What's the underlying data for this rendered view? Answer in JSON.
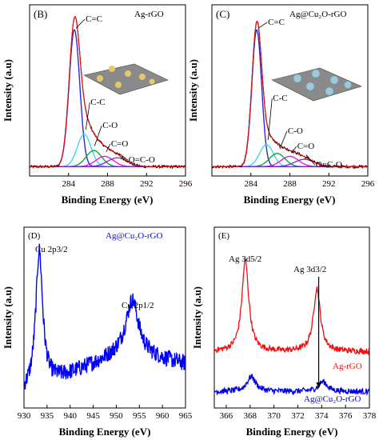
{
  "chart_data": [
    {
      "type": "line",
      "panel_label": "(B)",
      "sample_label": "Ag-rGO",
      "xlabel": "Binding Energy (eV)",
      "ylabel": "Intensity (a.u)",
      "xlim": [
        280,
        296
      ],
      "xticks": [
        284,
        288,
        292,
        296
      ],
      "grid": false,
      "annotations": [
        {
          "text": "C=C",
          "x": 284.6
        },
        {
          "text": "C-C",
          "x": 285.6
        },
        {
          "text": "C-O",
          "x": 286.5
        },
        {
          "text": "C=O",
          "x": 287.7
        },
        {
          "text": "O=C-O",
          "x": 289.0
        }
      ],
      "peaks": [
        {
          "name": "C=C",
          "center": 284.6,
          "height": 0.93,
          "width": 0.55,
          "color": "#2a2ad6"
        },
        {
          "name": "C-C",
          "center": 285.6,
          "height": 0.22,
          "width": 0.7,
          "color": "#44d4ee"
        },
        {
          "name": "C-O",
          "center": 286.6,
          "height": 0.11,
          "width": 0.8,
          "color": "#10a43c"
        },
        {
          "name": "C=O",
          "center": 287.7,
          "height": 0.07,
          "width": 0.9,
          "color": "#dd22dd"
        },
        {
          "name": "O=C-O",
          "center": 289.0,
          "height": 0.06,
          "width": 1.0,
          "color": "#7a3ad0"
        }
      ],
      "baseline": 0.02
    },
    {
      "type": "line",
      "panel_label": "(C)",
      "sample_label": "Ag@Cu₂O-rGO",
      "xlabel": "Binding Energy (eV)",
      "ylabel": "Intensity (a.u)",
      "xlim": [
        280,
        296
      ],
      "xticks": [
        284,
        288,
        292,
        296
      ],
      "grid": false,
      "annotations": [
        {
          "text": "C=C",
          "x": 284.6
        },
        {
          "text": "C-C",
          "x": 285.6
        },
        {
          "text": "C-O",
          "x": 286.8
        },
        {
          "text": "C=O",
          "x": 288.1
        },
        {
          "text": "O=C-O",
          "x": 289.5
        }
      ],
      "peaks": [
        {
          "name": "C=C",
          "center": 284.6,
          "height": 0.93,
          "width": 0.5,
          "color": "#2a2ad6"
        },
        {
          "name": "C-C",
          "center": 285.6,
          "height": 0.15,
          "width": 0.7,
          "color": "#44d4ee"
        },
        {
          "name": "C-O",
          "center": 286.7,
          "height": 0.09,
          "width": 0.8,
          "color": "#10a43c"
        },
        {
          "name": "C=O",
          "center": 288.0,
          "height": 0.07,
          "width": 0.9,
          "color": "#dd22dd"
        },
        {
          "name": "O=C-O",
          "center": 289.5,
          "height": 0.05,
          "width": 1.0,
          "color": "#7a3ad0"
        }
      ],
      "baseline": 0.02
    },
    {
      "type": "line",
      "panel_label": "(D)",
      "sample_label": "Ag@Cu₂O-rGO",
      "xlabel": "Binding Energy (eV)",
      "ylabel": "Intensity (a.u)",
      "xlim": [
        930,
        965
      ],
      "xticks": [
        930,
        935,
        940,
        945,
        950,
        955,
        960,
        965
      ],
      "grid": false,
      "annotations": [
        {
          "text": "Cu 2p3/2",
          "x": 933.3
        },
        {
          "text": "Cu 2p1/2",
          "x": 953.5
        }
      ],
      "series": [
        {
          "name": "Ag@Cu₂O-rGO",
          "color": "#0000ff",
          "peaks": [
            {
              "center": 933.3,
              "height": 0.82,
              "width": 0.9
            },
            {
              "center": 953.5,
              "height": 0.32,
              "width": 1.6
            }
          ],
          "baseline_start": 0.05,
          "baseline_end": 0.3
        }
      ]
    },
    {
      "type": "line",
      "panel_label": "(E)",
      "xlabel": "Binding Energy (eV)",
      "ylabel": "Intensity (a.u)",
      "xlim": [
        365,
        378
      ],
      "xticks": [
        366,
        368,
        370,
        372,
        374,
        376,
        378
      ],
      "grid": false,
      "annotations": [
        {
          "text": "Ag 3d5/2",
          "x": 367.6
        },
        {
          "text": "Ag 3d3/2",
          "x": 373.6
        }
      ],
      "series": [
        {
          "name": "Ag-rGO",
          "color": "#ee1111",
          "peaks": [
            {
              "center": 367.6,
              "height": 0.55,
              "width": 0.35
            },
            {
              "center": 373.6,
              "height": 0.38,
              "width": 0.35
            }
          ],
          "offset": 0.3
        },
        {
          "name": "Ag@Cu₂O-rGO",
          "color": "#0000ee",
          "peaks": [
            {
              "center": 368.1,
              "height": 0.09,
              "width": 0.45
            },
            {
              "center": 374.1,
              "height": 0.06,
              "width": 0.45
            }
          ],
          "offset": 0.06
        }
      ]
    }
  ]
}
